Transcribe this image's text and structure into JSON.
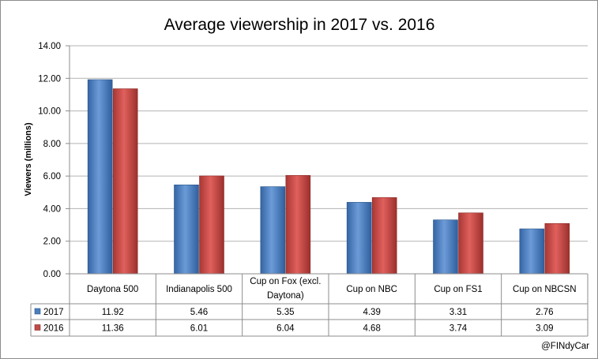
{
  "chart_data": {
    "type": "bar",
    "title": "Average viewership in 2017 vs. 2016",
    "xlabel": "",
    "ylabel": "Viewers (millions)",
    "ylim": [
      0,
      14
    ],
    "yticks": [
      "0.00",
      "2.00",
      "4.00",
      "6.00",
      "8.00",
      "10.00",
      "12.00",
      "14.00"
    ],
    "grid": true,
    "categories": [
      "Daytona 500",
      "Indianapolis 500",
      "Cup on Fox (excl. Daytona)",
      "Cup on NBC",
      "Cup on FS1",
      "Cup on NBCSN"
    ],
    "category_label_lines": [
      [
        "Daytona 500"
      ],
      [
        "Indianapolis 500"
      ],
      [
        "Cup on Fox (excl.",
        "Daytona)"
      ],
      [
        "Cup on NBC"
      ],
      [
        "Cup on FS1"
      ],
      [
        "Cup on NBCSN"
      ]
    ],
    "series": [
      {
        "name": "2017",
        "color": "#4a7ebb",
        "values": [
          11.92,
          5.46,
          5.35,
          4.39,
          3.31,
          2.76
        ],
        "labels": [
          "11.92",
          "5.46",
          "5.35",
          "4.39",
          "3.31",
          "2.76"
        ]
      },
      {
        "name": "2016",
        "color": "#be4b48",
        "values": [
          11.36,
          6.01,
          6.04,
          4.68,
          3.74,
          3.09
        ],
        "labels": [
          "11.36",
          "6.01",
          "6.04",
          "4.68",
          "3.74",
          "3.09"
        ]
      }
    ],
    "legend": "data-table"
  },
  "credit": "@FINdyCar"
}
